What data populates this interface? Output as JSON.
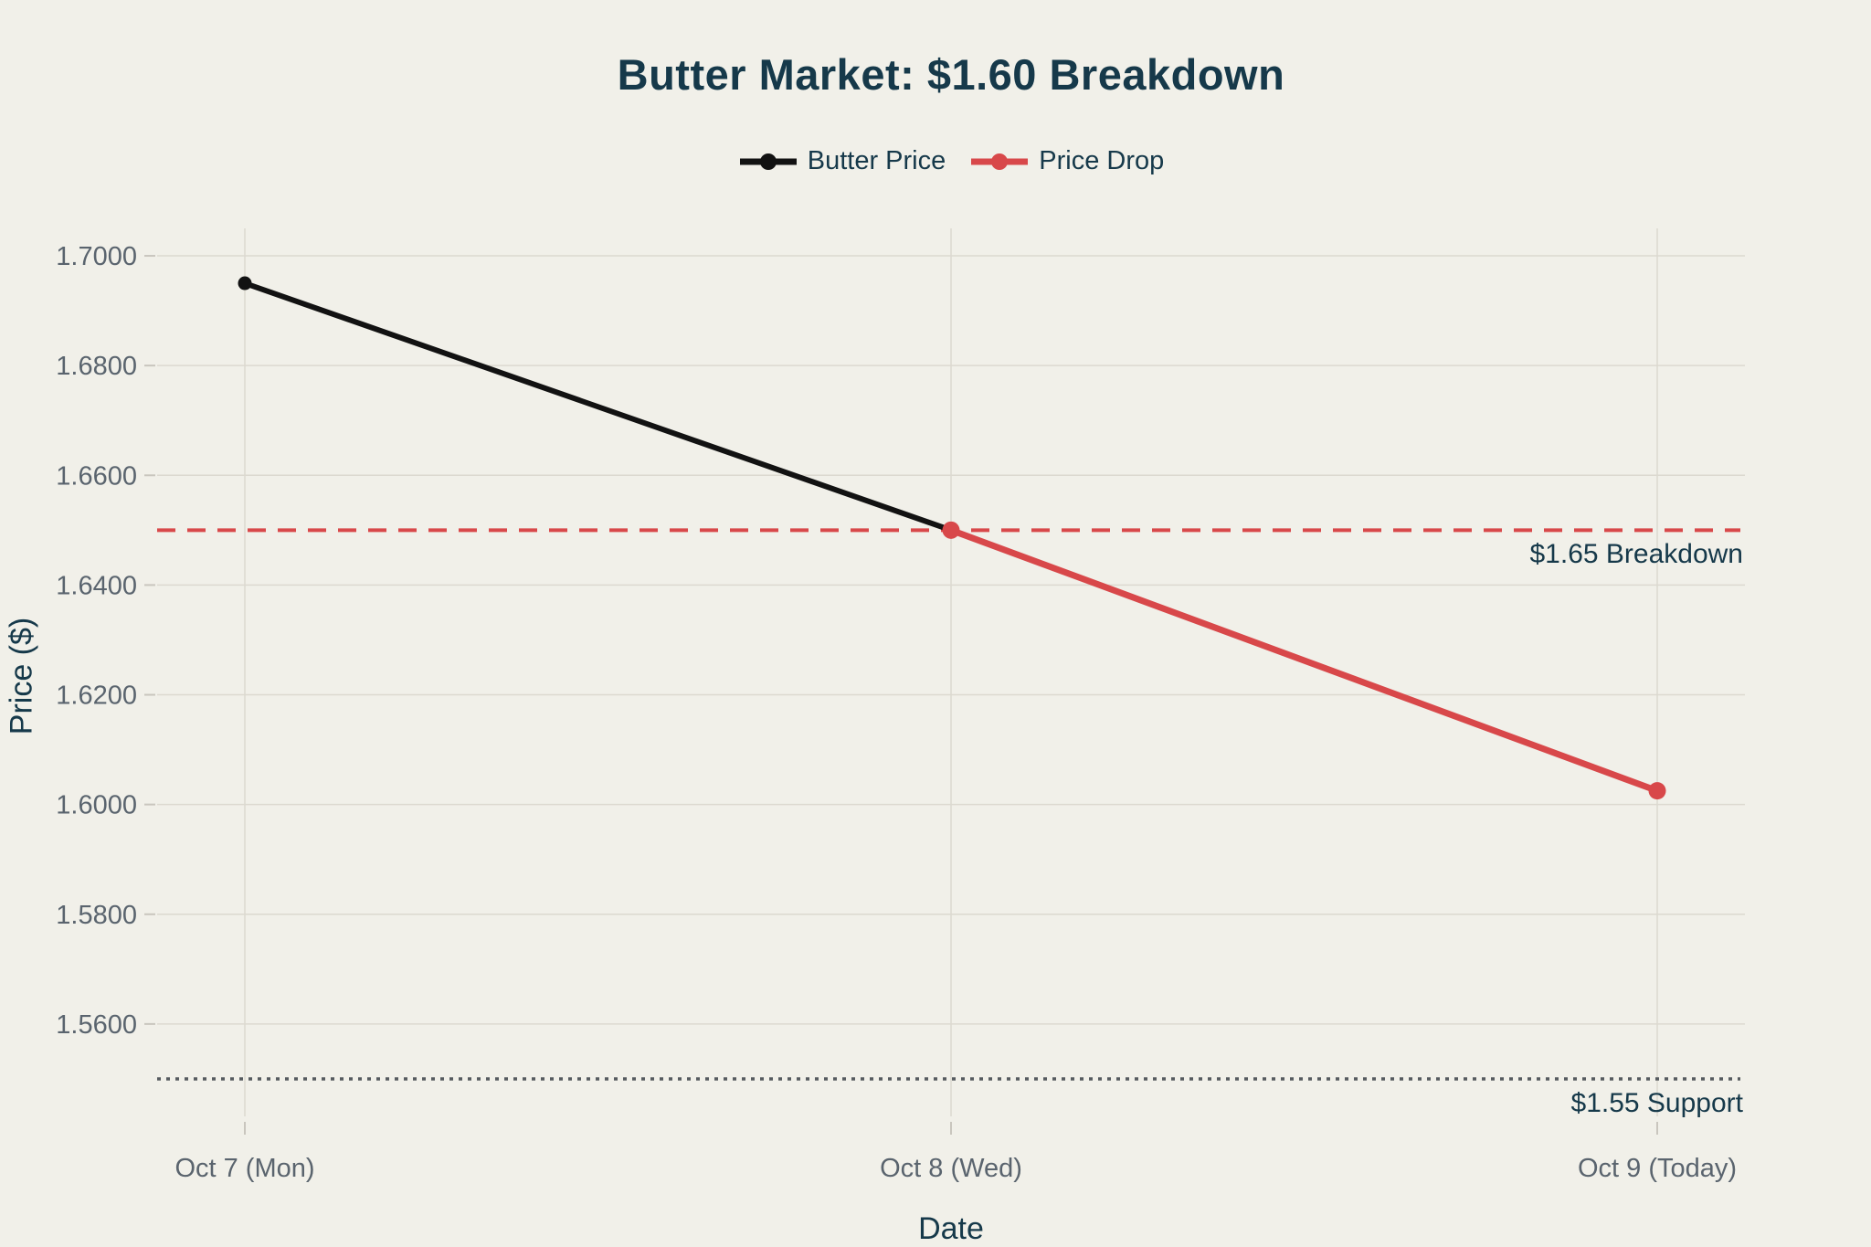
{
  "colors": {
    "background": "#f1f0e9",
    "title_text": "#16394a",
    "axis_label_text": "#16394a",
    "tick_label_text": "#5a646e",
    "gridline": "#dcd9d0",
    "tick_mark": "#c9c6be",
    "butter_price_line": "#121212",
    "price_drop_line": "#d8484a",
    "breakdown_line": "#d8484a",
    "support_line": "#555a5f"
  },
  "chart_data": {
    "type": "line",
    "title": "Butter Market: $1.60 Breakdown",
    "xlabel": "Date",
    "ylabel": "Price ($)",
    "categories": [
      "Oct 7 (Mon)",
      "Oct 8 (Wed)",
      "Oct 9 (Today)"
    ],
    "series": [
      {
        "name": "Butter Price",
        "color": "#121212",
        "values": [
          1.695,
          1.65,
          null
        ]
      },
      {
        "name": "Price Drop",
        "color": "#d8484a",
        "values": [
          null,
          1.65,
          1.6025
        ]
      }
    ],
    "yticks": [
      1.56,
      1.58,
      1.6,
      1.62,
      1.64,
      1.66,
      1.68,
      1.7
    ],
    "ytick_decimals": 4,
    "ylim": [
      1.541,
      1.705
    ],
    "grid": true,
    "legend_position": "top-center",
    "hlines": [
      {
        "value": 1.65,
        "label": "$1.65 Breakdown",
        "style": "dashed",
        "color": "#d8484a"
      },
      {
        "value": 1.55,
        "label": "$1.55 Support",
        "style": "dotted",
        "color": "#555a5f"
      }
    ]
  }
}
